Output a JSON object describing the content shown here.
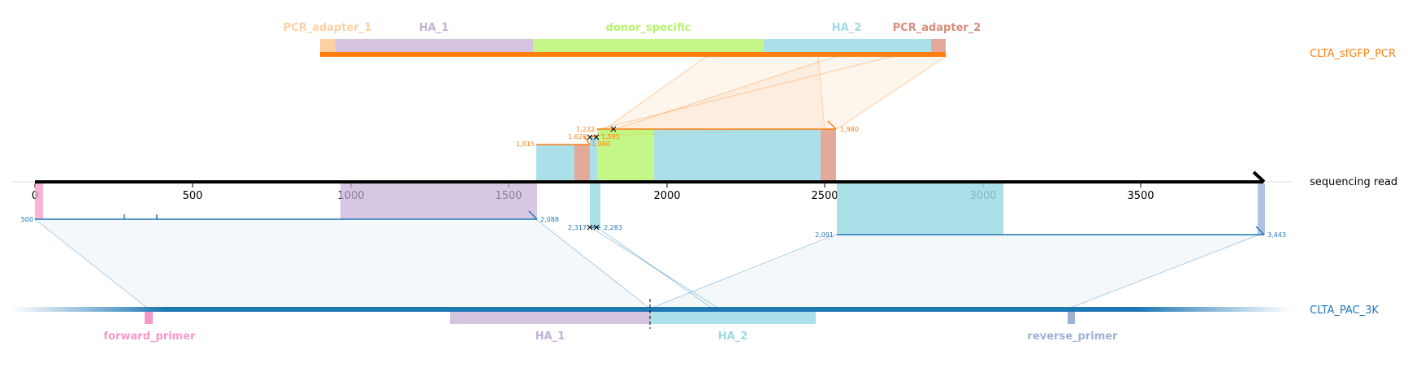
{
  "read": {
    "name": "sequencing read",
    "ticks": [
      "0",
      "500",
      "1000",
      "1500",
      "2000",
      "2500",
      "3000",
      "3500"
    ]
  },
  "top_ref": {
    "name": "CLTA_sfGFP_PCR",
    "color": "#ff7f0e",
    "features": [
      {
        "name": "PCR_adapter_1",
        "color": "#fdd0a2"
      },
      {
        "name": "HA_1",
        "color": "#c5b0d5"
      },
      {
        "name": "donor_specific",
        "color": "#b5f56a"
      },
      {
        "name": "HA_2",
        "color": "#9edae5"
      },
      {
        "name": "PCR_adapter_2",
        "color": "#d98c7a"
      }
    ],
    "alignment_coords": [
      "1,815",
      "1,222",
      "1,620",
      "1,595",
      "1,980",
      "1,980"
    ]
  },
  "bottom_ref": {
    "name": "CLTA_PAC_3K",
    "color": "#1f77b4",
    "features": [
      {
        "name": "forward_primer",
        "color": "#f799c6"
      },
      {
        "name": "HA_1",
        "color": "#c5b0d5"
      },
      {
        "name": "HA_2",
        "color": "#9edae5"
      },
      {
        "name": "reverse_primer",
        "color": "#9fb1d4"
      }
    ],
    "alignment_coords": [
      "500",
      "2,088",
      "2,317",
      "2,283",
      "2,091",
      "3,443"
    ]
  }
}
